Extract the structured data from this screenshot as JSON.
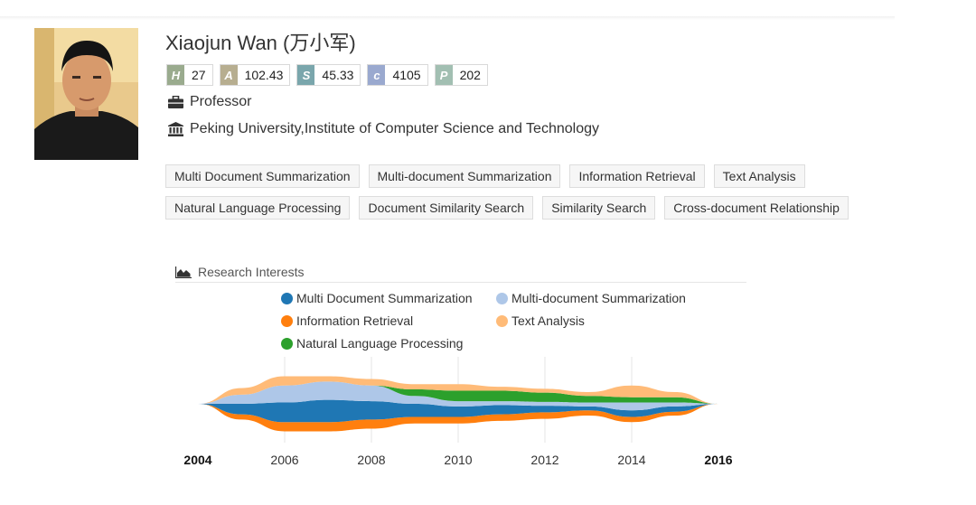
{
  "profile": {
    "name": "Xiaojun Wan (万小军)",
    "position": "Professor",
    "affiliation": "Peking University,Institute of Computer Science and Technology",
    "stats": [
      {
        "key": "H",
        "value": "27",
        "color": "#9aab8e"
      },
      {
        "key": "A",
        "value": "102.43",
        "color": "#b7ae90"
      },
      {
        "key": "S",
        "value": "45.33",
        "color": "#7aa6ac"
      },
      {
        "key": "c",
        "value": "4105",
        "color": "#9aa9cf"
      },
      {
        "key": "P",
        "value": "202",
        "color": "#a2bfb2"
      }
    ]
  },
  "tags": [
    [
      "Multi Document Summarization",
      "Multi-document Summarization",
      "Information Retrieval",
      "Text Analysis"
    ],
    [
      "Natural Language Processing",
      "Document Similarity Search",
      "Similarity Search",
      "Cross-document Relationship"
    ]
  ],
  "research": {
    "heading": "Research Interests",
    "icon": "area-chart-icon"
  },
  "chart_data": {
    "type": "area",
    "subtype": "streamgraph",
    "title": "Research Interests",
    "x": [
      2004,
      2005,
      2006,
      2007,
      2008,
      2009,
      2010,
      2011,
      2012,
      2013,
      2014,
      2015,
      2016
    ],
    "xticks": [
      "2004",
      "2006",
      "2008",
      "2010",
      "2012",
      "2014",
      "2016"
    ],
    "xlim": [
      2004,
      2016
    ],
    "grid": true,
    "legend_position": "top",
    "series": [
      {
        "name": "Multi Document Summarization",
        "color": "#1f77b4",
        "values": [
          0,
          8,
          15,
          17,
          14,
          10,
          8,
          7,
          5,
          3,
          5,
          4,
          0
        ]
      },
      {
        "name": "Multi-document Summarization",
        "color": "#aec7e8",
        "values": [
          0,
          7,
          13,
          14,
          12,
          6,
          4,
          3,
          3,
          3,
          6,
          3,
          0
        ]
      },
      {
        "name": "Information Retrieval",
        "color": "#ff7f0e",
        "values": [
          0,
          4,
          7,
          7,
          7,
          5,
          5,
          5,
          5,
          4,
          4,
          3,
          0
        ]
      },
      {
        "name": "Text Analysis",
        "color": "#ffbb78",
        "values": [
          0,
          5,
          7,
          4,
          5,
          4,
          5,
          3,
          3,
          3,
          9,
          4,
          0
        ]
      },
      {
        "name": "Natural Language Processing",
        "color": "#2ca02c",
        "values": [
          0,
          0,
          0,
          0,
          0,
          5,
          8,
          8,
          7,
          5,
          4,
          4,
          0
        ]
      }
    ]
  }
}
